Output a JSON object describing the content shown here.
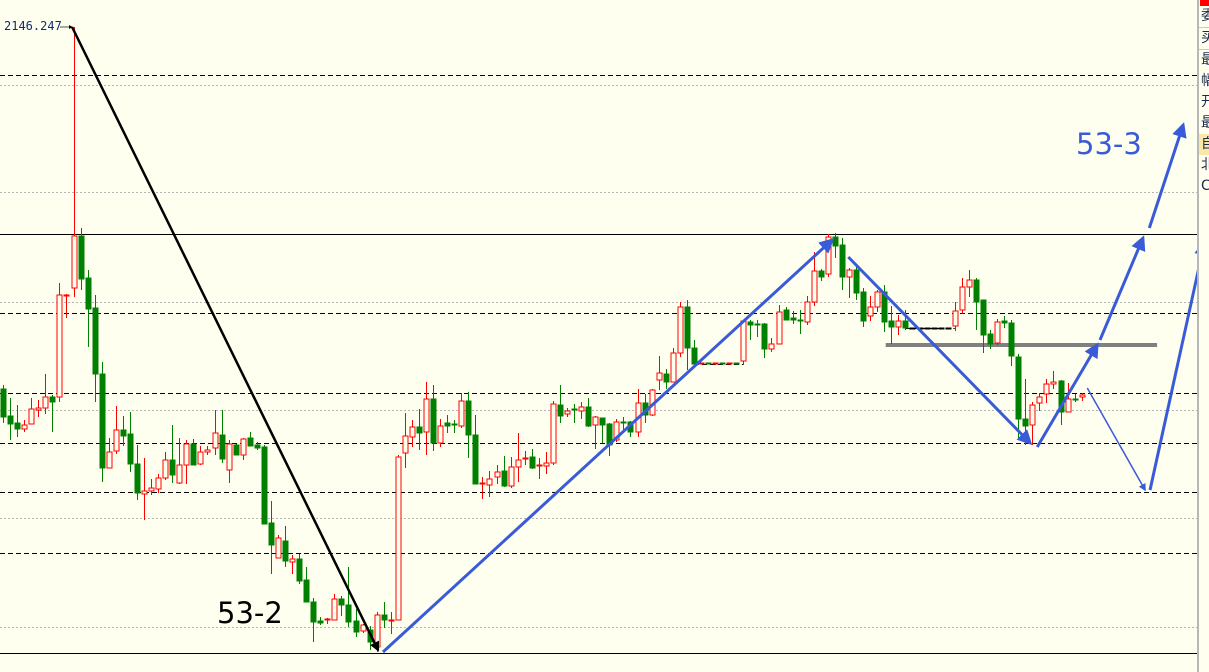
{
  "peak_label": "2146.247",
  "wave_labels": {
    "left": "53-2",
    "right": "53-3"
  },
  "side_panel": {
    "rows": [
      "委",
      "买",
      "最",
      "幅",
      "开",
      "最",
      "自",
      "北",
      "C"
    ],
    "highlighted_row": 6
  },
  "colors": {
    "background": "#fffff0",
    "up": "#ff0000",
    "down": "#008000",
    "arrow": "#3a5bd8",
    "level": "#808080"
  },
  "chart_data": {
    "type": "candlestick",
    "title": "",
    "ylim": [
      1985,
      2153
    ],
    "peak_marker": 2146.247,
    "candles_ohlc": [
      [
        2055.75,
        2056.75,
        2047.25,
        2048.75
      ],
      [
        2049,
        2053.5,
        2043,
        2047
      ],
      [
        2047.25,
        2051.75,
        2043.75,
        2045.75
      ],
      [
        2045.75,
        2048,
        2045,
        2046.75
      ],
      [
        2047,
        2053.5,
        2047,
        2050.75
      ],
      [
        2050.5,
        2053,
        2048.75,
        2051
      ],
      [
        2051,
        2059.5,
        2049.5,
        2053.75
      ],
      [
        2053.75,
        2054.25,
        2045,
        2052.5
      ],
      [
        2053.75,
        2082.25,
        2052.5,
        2079.25
      ],
      [
        2079,
        2079.5,
        2073.5,
        2079.25
      ],
      [
        2081,
        2146.25,
        2078.75,
        2094
      ],
      [
        2094,
        2096,
        2080.5,
        2083.25
      ],
      [
        2083.5,
        2085.5,
        2066.25,
        2075.75
      ],
      [
        2076,
        2079.25,
        2052.5,
        2059.5
      ],
      [
        2059.5,
        2062.5,
        2032.5,
        2036
      ],
      [
        2036,
        2043.5,
        2036,
        2040
      ],
      [
        2040.25,
        2051.5,
        2039.5,
        2045.5
      ],
      [
        2045.5,
        2049,
        2041.5,
        2044
      ],
      [
        2044.5,
        2050,
        2035,
        2037
      ],
      [
        2037,
        2041.75,
        2028,
        2029.75
      ],
      [
        2029.5,
        2038.5,
        2023,
        2030.25
      ],
      [
        2030.25,
        2033.25,
        2029.25,
        2031
      ],
      [
        2030.75,
        2034.5,
        2029.75,
        2033.5
      ],
      [
        2033.5,
        2040,
        2033,
        2038
      ],
      [
        2038,
        2046.75,
        2032.25,
        2034.25
      ],
      [
        2032.25,
        2043.5,
        2032,
        2036.75
      ],
      [
        2036.75,
        2043,
        2032,
        2042
      ],
      [
        2042,
        2043.25,
        2036.75,
        2036.75
      ],
      [
        2037,
        2041.5,
        2036.75,
        2040
      ],
      [
        2040,
        2041.5,
        2039.25,
        2040.5
      ],
      [
        2041,
        2050.5,
        2039.25,
        2044.75
      ],
      [
        2044.25,
        2050.5,
        2037.25,
        2038.25
      ],
      [
        2035.5,
        2043,
        2032.25,
        2042
      ],
      [
        2041.75,
        2042,
        2039.25,
        2039.25
      ],
      [
        2039.25,
        2043.5,
        2038,
        2043.25
      ],
      [
        2043.5,
        2045,
        2041.5,
        2041.5
      ],
      [
        2041.75,
        2042.5,
        2040.5,
        2041
      ],
      [
        2041.25,
        2041.75,
        2022,
        2022
      ],
      [
        2022.25,
        2027.75,
        2009.5,
        2016.75
      ],
      [
        2013.5,
        2019.25,
        2013.5,
        2018.5
      ],
      [
        2017.75,
        2021.5,
        2011.25,
        2012.75
      ],
      [
        2012.5,
        2014.25,
        2009.5,
        2013.25
      ],
      [
        2013.25,
        2014.5,
        2007,
        2007.75
      ],
      [
        2008,
        2011.25,
        2002.5,
        2002.5
      ],
      [
        2002.5,
        2003.5,
        1992.5,
        1997.5
      ],
      [
        1997.75,
        1998.75,
        1996.75,
        1997.25
      ],
      [
        1998,
        1998.5,
        1997,
        1998.25
      ],
      [
        1998,
        2004.5,
        1998,
        2003.25
      ],
      [
        2003.25,
        2004,
        1999,
        2001.75
      ],
      [
        2001.75,
        2011.25,
        1996.25,
        1997.5
      ],
      [
        1997.75,
        2000.75,
        1993.75,
        1995
      ],
      [
        1995.25,
        1997,
        1994.75,
        1996.75
      ],
      [
        1995.5,
        1996.5,
        1990.5,
        1992.5
      ],
      [
        1991.25,
        2000,
        1990,
        1999.25
      ],
      [
        1999.25,
        2002.5,
        1996,
        1998
      ],
      [
        1997.75,
        2000,
        1994.5,
        1998
      ],
      [
        1998,
        2039.25,
        1998,
        2038.75
      ],
      [
        2039.75,
        2049.75,
        2036,
        2044
      ],
      [
        2043.75,
        2048,
        2041.25,
        2046.25
      ],
      [
        2046.25,
        2050.75,
        2040.5,
        2044.75
      ],
      [
        2045,
        2057.5,
        2039.25,
        2053.25
      ],
      [
        2053.25,
        2056.75,
        2040.25,
        2042.25
      ],
      [
        2042.25,
        2048.25,
        2041.25,
        2046.5
      ],
      [
        2047.25,
        2049.25,
        2044.75,
        2046.5
      ],
      [
        2047,
        2048,
        2044.75,
        2046.75
      ],
      [
        2046.5,
        2054.75,
        2046,
        2052.75
      ],
      [
        2052.75,
        2055,
        2038.5,
        2044.25
      ],
      [
        2044.25,
        2049.25,
        2032,
        2032
      ],
      [
        2032,
        2033.75,
        2028.25,
        2032.25
      ],
      [
        2031.75,
        2035.25,
        2028.75,
        2033.25
      ],
      [
        2033.75,
        2036.75,
        2032,
        2035
      ],
      [
        2035.25,
        2039,
        2031.25,
        2031.5
      ],
      [
        2031.5,
        2038.75,
        2031,
        2036.25
      ],
      [
        2036.25,
        2044.75,
        2032.5,
        2038
      ],
      [
        2038.25,
        2040.25,
        2036.75,
        2038.5
      ],
      [
        2038.75,
        2040.75,
        2035.75,
        2036
      ],
      [
        2036.5,
        2038.5,
        2033.25,
        2036.75
      ],
      [
        2036.5,
        2040,
        2034.5,
        2037.25
      ],
      [
        2037.25,
        2052.75,
        2036.75,
        2052
      ],
      [
        2051.75,
        2056.75,
        2047.25,
        2049
      ],
      [
        2049.5,
        2051,
        2048.75,
        2050.25
      ],
      [
        2050.75,
        2052,
        2047.25,
        2050.5
      ],
      [
        2050.25,
        2052.5,
        2048.25,
        2051.25
      ],
      [
        2051.25,
        2053.5,
        2046.25,
        2046.5
      ],
      [
        2046.75,
        2049,
        2040.75,
        2048.75
      ],
      [
        2048.5,
        2048.5,
        2042.25,
        2046.75
      ],
      [
        2047,
        2047.25,
        2039,
        2041.75
      ],
      [
        2043,
        2048.25,
        2042.5,
        2047.5
      ],
      [
        2047.5,
        2048.75,
        2045.25,
        2047.25
      ],
      [
        2047.5,
        2047.75,
        2043.75,
        2045
      ],
      [
        2045,
        2055.75,
        2043.75,
        2052.25
      ],
      [
        2052.25,
        2054.5,
        2047.25,
        2049.25
      ],
      [
        2049.25,
        2055.75,
        2049,
        2055.5
      ],
      [
        2058,
        2064,
        2055.5,
        2059.75
      ],
      [
        2059.5,
        2060.75,
        2055.75,
        2057.5
      ],
      [
        2057.5,
        2066,
        2057.5,
        2064.75
      ],
      [
        2064.75,
        2077.5,
        2063.75,
        2076.25
      ],
      [
        2076.25,
        2078,
        2060.5,
        2066
      ],
      [
        2066,
        2068,
        2061,
        2062
      ],
      [
        2062,
        2062.25,
        2062,
        2062.25
      ],
      [
        2062.25,
        2062.25,
        2062,
        2062
      ],
      [
        2062,
        2062.25,
        2061.75,
        2062.25
      ],
      [
        2062.25,
        2062.25,
        2062,
        2062
      ],
      [
        2062,
        2062.25,
        2062,
        2062.25
      ],
      [
        2062.25,
        2062.25,
        2062,
        2062
      ],
      [
        2062.75,
        2072.75,
        2061.75,
        2072.75
      ],
      [
        2072.5,
        2073,
        2068,
        2071.75
      ],
      [
        2072,
        2073,
        2068.75,
        2071.75
      ],
      [
        2072,
        2072.25,
        2063.5,
        2065.75
      ],
      [
        2065.75,
        2068.5,
        2065,
        2067
      ],
      [
        2067,
        2076.75,
        2067,
        2075
      ],
      [
        2075.5,
        2076.25,
        2073,
        2073
      ],
      [
        2073.5,
        2075.25,
        2072,
        2073
      ],
      [
        2073,
        2075.5,
        2069.5,
        2072.75
      ],
      [
        2072.5,
        2079,
        2071.75,
        2077.5
      ],
      [
        2077.5,
        2090,
        2076.5,
        2085.25
      ],
      [
        2085.25,
        2085.75,
        2082.75,
        2083.75
      ],
      [
        2084.5,
        2094.5,
        2083.75,
        2093.75
      ],
      [
        2093.75,
        2094.75,
        2088.5,
        2091.5
      ],
      [
        2091.75,
        2093.5,
        2080.5,
        2083.75
      ],
      [
        2083.75,
        2086,
        2078.5,
        2085.5
      ],
      [
        2085.5,
        2086.75,
        2078,
        2079.75
      ],
      [
        2080,
        2081,
        2071.25,
        2072.75
      ],
      [
        2074,
        2079,
        2072.75,
        2076.25
      ],
      [
        2076.25,
        2080.5,
        2075,
        2080
      ],
      [
        2080,
        2081.75,
        2070,
        2072.5
      ],
      [
        2072.75,
        2076.5,
        2067,
        2071.25
      ],
      [
        2071.25,
        2074.25,
        2069.25,
        2072.75
      ],
      [
        2072.75,
        2075.5,
        2070.5,
        2071
      ],
      [
        2071,
        2071,
        2071,
        2071
      ],
      [
        2071,
        2071,
        2071,
        2071
      ],
      [
        2071,
        2071,
        2071,
        2071
      ],
      [
        2071,
        2071,
        2071,
        2071
      ],
      [
        2071,
        2071,
        2071,
        2071
      ],
      [
        2071,
        2071,
        2071,
        2071
      ],
      [
        2071.5,
        2077.5,
        2070.25,
        2075.25
      ],
      [
        2075.5,
        2083.5,
        2074.5,
        2081.25
      ],
      [
        2081.25,
        2085.5,
        2078.75,
        2083
      ],
      [
        2083,
        2083.5,
        2070.5,
        2077.5
      ],
      [
        2078,
        2078,
        2064.75,
        2069.25
      ],
      [
        2069.5,
        2070.5,
        2065.75,
        2067
      ],
      [
        2067.25,
        2073.25,
        2066.75,
        2072.5
      ],
      [
        2072.75,
        2074,
        2071,
        2072.25
      ],
      [
        2072.25,
        2073,
        2061.5,
        2064
      ],
      [
        2063.75,
        2064.5,
        2043,
        2048.25
      ],
      [
        2048.25,
        2058.25,
        2041.75,
        2046.5
      ],
      [
        2046.75,
        2052.5,
        2041.75,
        2051.75
      ],
      [
        2052.25,
        2054.75,
        2050.25,
        2053.75
      ],
      [
        2054.5,
        2058.25,
        2052.25,
        2057
      ],
      [
        2057,
        2060.25,
        2055.75,
        2057.5
      ],
      [
        2057.75,
        2058,
        2046.75,
        2050
      ],
      [
        2050,
        2057.25,
        2050,
        2053.25
      ],
      [
        2053.25,
        2054.5,
        2052.5,
        2053
      ],
      [
        2053.75,
        2054.75,
        2052.75,
        2054.25
      ]
    ],
    "solid_levels": [
      2094.5,
      1989.75
    ],
    "dashed_levels": [
      2134.25,
      2074.75,
      2054.75,
      2042.25,
      2030,
      2014.75
    ],
    "dotted_levels": [
      2131.75,
      2105,
      2077.5,
      2050.5,
      2023.5,
      1996.25
    ],
    "flat_segments": [
      {
        "from": 98,
        "to": 105,
        "price": 2062
      },
      {
        "from": 128,
        "to": 135,
        "price": 2071
      }
    ],
    "support_line": {
      "from": 125.2,
      "to": 163.7,
      "price": 2066.75
    },
    "trend_arrows": [
      {
        "color": "black",
        "from": [
          9.8,
          2146.25
        ],
        "to": [
          53.2,
          1990.5
        ]
      },
      {
        "color": "blue",
        "from": [
          53.9,
          1990
        ],
        "to": [
          117.6,
          2093
        ]
      },
      {
        "color": "blue",
        "from": [
          119.9,
          2088.75
        ],
        "to": [
          145.7,
          2042.25
        ]
      },
      {
        "color": "blue",
        "from": [
          146.7,
          2041.25
        ],
        "to": [
          155.2,
          2066.75
        ]
      },
      {
        "color": "blue",
        "from": [
          155.6,
          2068
        ],
        "to": [
          161.7,
          2093.5
        ]
      },
      {
        "color": "blue",
        "from": [
          162.6,
          2096
        ],
        "to": [
          167.4,
          2121.75
        ]
      },
      {
        "color": "blue-thin",
        "from": [
          153.8,
          2056
        ],
        "to": [
          162,
          2030.5
        ]
      },
      {
        "color": "blue",
        "from": [
          162.7,
          2030.5
        ],
        "to": [
          170.4,
          2092.25
        ]
      }
    ]
  }
}
